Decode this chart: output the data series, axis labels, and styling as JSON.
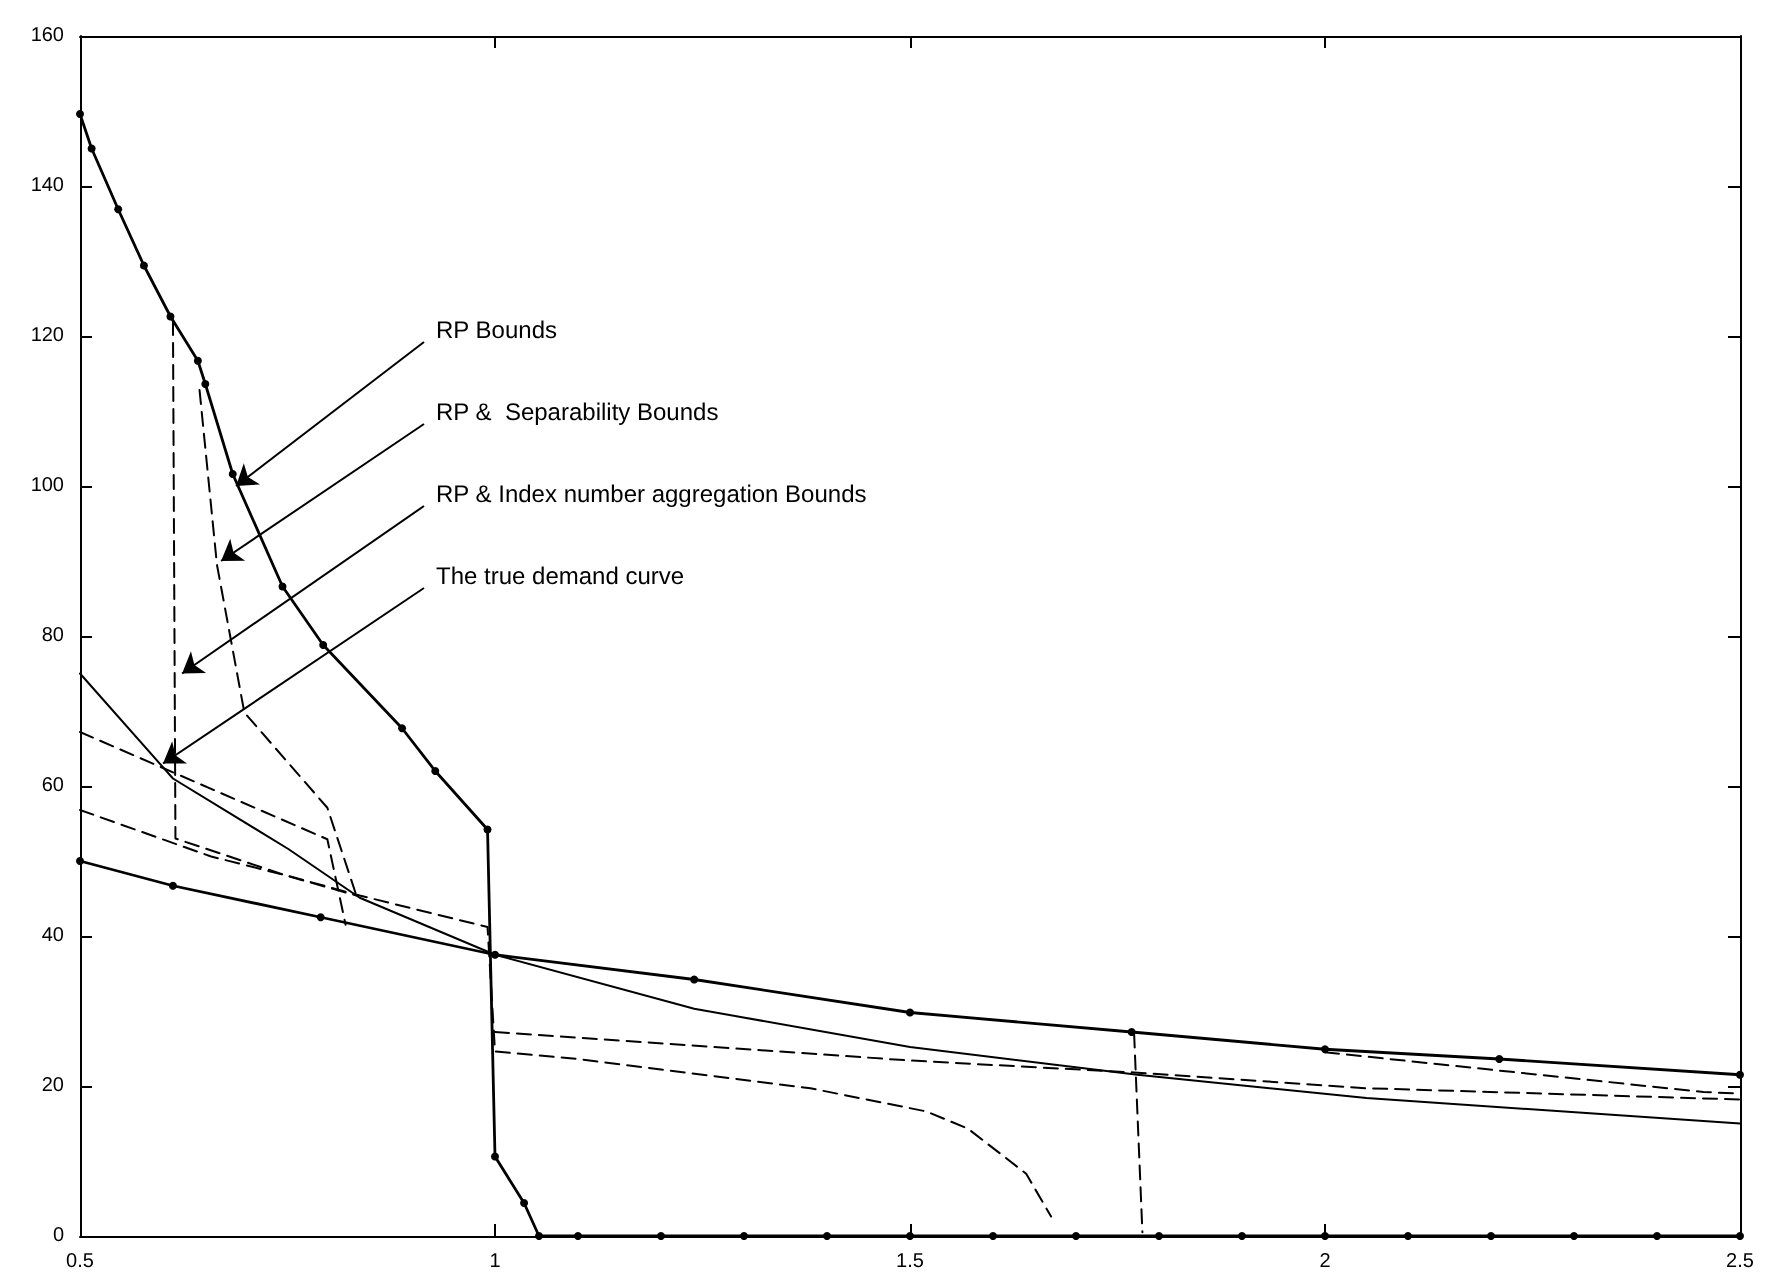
{
  "chart_data": {
    "type": "line",
    "xlim": [
      0.5,
      2.5
    ],
    "xticks": [
      0.5,
      1,
      1.5,
      2,
      2.5
    ],
    "ylim": [
      0,
      160
    ],
    "yticks": [
      0,
      20,
      40,
      60,
      80,
      100,
      120,
      140,
      160
    ],
    "grid": false,
    "annotations": [
      {
        "text": "RP Bounds",
        "x": 0.688,
        "y": 100
      },
      {
        "text": "RP &  Separability Bounds",
        "x": 0.67,
        "y": 90
      },
      {
        "text": "RP & Index number aggregation Bounds",
        "x": 0.623,
        "y": 75
      },
      {
        "text": "The true demand curve",
        "x": 0.6,
        "y": 63
      }
    ],
    "series": [
      {
        "color": "#000000",
        "marker": "circle",
        "line_style": "solid",
        "x": [
          0.5,
          0.514,
          0.546,
          0.577,
          0.609,
          0.642,
          0.651,
          0.684,
          0.744,
          0.793,
          0.888,
          0.928,
          0.991,
          1.0,
          1.035,
          1.053,
          1.1,
          1.2,
          1.3,
          1.4,
          1.5,
          1.6,
          1.7,
          1.8,
          1.9,
          2.0,
          2.1,
          2.2,
          2.3,
          2.4,
          2.5
        ],
        "values": [
          149.6,
          145,
          136.9,
          129.4,
          122.6,
          116.7,
          113.6,
          101.6,
          86.6,
          78.8,
          67.7,
          62,
          54.2,
          10.6,
          4.4,
          0,
          0,
          0,
          0,
          0,
          0,
          0,
          0,
          0,
          0,
          0,
          0,
          0,
          0,
          0,
          0
        ]
      },
      {
        "color": "#000000",
        "marker": "circle",
        "line_style": "solid",
        "x": [
          0.5,
          0.612,
          0.79,
          1.0,
          1.24,
          1.5,
          1.767,
          2.0,
          2.21,
          2.5
        ],
        "values": [
          50,
          46.7,
          42.5,
          37.5,
          34.2,
          29.8,
          27.2,
          24.9,
          23.6,
          21.5
        ]
      },
      {
        "color": "#000000",
        "marker": "none",
        "line_style": "solid",
        "x": [
          0.5,
          0.612,
          0.751,
          0.837,
          1.0,
          1.24,
          1.5,
          1.774,
          2.05,
          2.5
        ],
        "values": [
          75,
          61,
          51.6,
          45.1,
          37.5,
          30.3,
          25.2,
          21.5,
          18.4,
          15
        ]
      },
      {
        "color": "#000000",
        "marker": "none",
        "line_style": "dashed",
        "x": [
          0.5,
          0.658,
          0.751,
          0.837,
          0.991,
          1.0,
          1.1,
          1.38,
          1.52,
          1.57,
          1.64,
          1.67
        ],
        "values": [
          56.8,
          50.6,
          48,
          45.4,
          41.2,
          24.6,
          23.6,
          19.7,
          16.6,
          14.3,
          8.3,
          2.6
        ]
      },
      {
        "color": "#000000",
        "marker": "none",
        "line_style": "dashed",
        "x": [
          0.644,
          0.665,
          0.698,
          0.798,
          0.833
        ],
        "values": [
          112.8,
          89.5,
          69.8,
          57.1,
          45.4
        ]
      },
      {
        "color": "#000000",
        "marker": "none",
        "line_style": "dashed",
        "x": [
          2.0,
          2.456,
          2.5
        ],
        "values": [
          24.5,
          19.2,
          19
        ]
      },
      {
        "color": "#000000",
        "marker": "none",
        "line_style": "dashed",
        "x": [
          0.612,
          0.615,
          0.75,
          0.833
        ],
        "values": [
          122,
          53,
          48,
          45.4
        ]
      },
      {
        "color": "#000000",
        "marker": "none",
        "line_style": "dashed",
        "x": [
          0.5,
          0.798,
          0.82
        ],
        "values": [
          67.2,
          52.9,
          41.5
        ]
      },
      {
        "color": "#000000",
        "marker": "none",
        "line_style": "dashed",
        "x": [
          1.0,
          1.5,
          1.77,
          2.05,
          2.5
        ],
        "values": [
          27.2,
          23.4,
          21.8,
          19.7,
          18.2
        ]
      },
      {
        "color": "#000000",
        "marker": "none",
        "line_style": "dashed",
        "x": [
          1.77,
          1.78
        ],
        "values": [
          27,
          0.5
        ]
      }
    ]
  }
}
